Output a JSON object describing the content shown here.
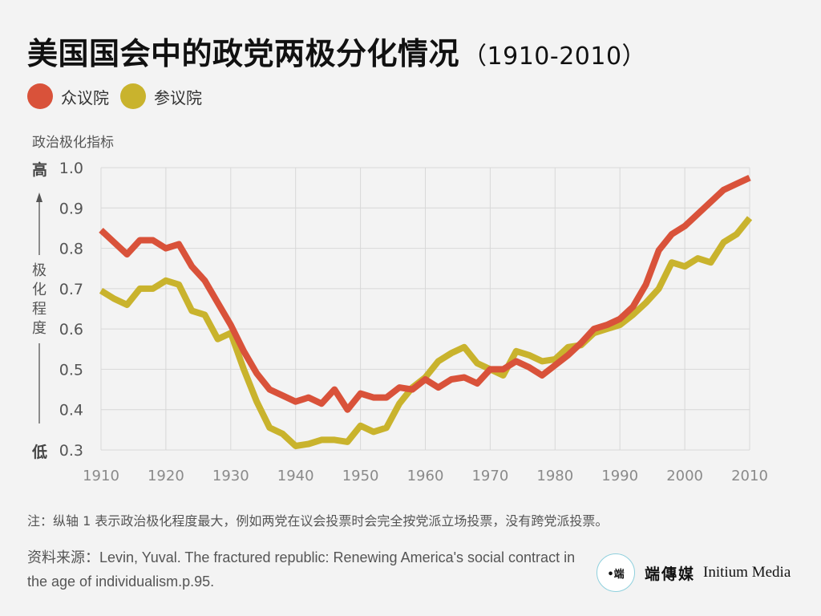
{
  "header": {
    "title": "美国国会中的政党两极分化情况",
    "subtitle": "（1910-2010）"
  },
  "legend": [
    {
      "label": "众议院",
      "color": "#d9523a"
    },
    {
      "label": "参议院",
      "color": "#c9b32d"
    }
  ],
  "axis": {
    "ylabel": "政治极化指标",
    "high_label": "高",
    "low_label": "低",
    "vertical_label": "极化程度"
  },
  "chart_data": {
    "type": "line",
    "title": "美国国会中的政党两极分化情况（1910-2010）",
    "ylabel": "政治极化指标",
    "xlabel": "",
    "xlim": [
      1910,
      2010
    ],
    "ylim": [
      0.3,
      1.0
    ],
    "x_ticks": [
      "1910",
      "1920",
      "1930",
      "1940",
      "1950",
      "1960",
      "1970",
      "1980",
      "1990",
      "2000",
      "2010"
    ],
    "y_ticks": [
      "0.3",
      "0.4",
      "0.5",
      "0.6",
      "0.7",
      "0.8",
      "0.9",
      "1.0"
    ],
    "grid": true,
    "legend_position": "top-left",
    "series": [
      {
        "name": "众议院",
        "color": "#d9523a",
        "x": [
          1910,
          1912,
          1914,
          1916,
          1918,
          1920,
          1922,
          1924,
          1926,
          1928,
          1930,
          1932,
          1934,
          1936,
          1938,
          1940,
          1942,
          1944,
          1946,
          1948,
          1950,
          1952,
          1954,
          1956,
          1958,
          1960,
          1962,
          1964,
          1966,
          1968,
          1970,
          1972,
          1974,
          1976,
          1978,
          1980,
          1982,
          1984,
          1986,
          1988,
          1990,
          1992,
          1994,
          1996,
          1998,
          2000,
          2002,
          2004,
          2006,
          2008,
          2010
        ],
        "values": [
          0.845,
          0.815,
          0.785,
          0.82,
          0.82,
          0.8,
          0.81,
          0.755,
          0.72,
          0.665,
          0.61,
          0.545,
          0.49,
          0.45,
          0.435,
          0.42,
          0.43,
          0.415,
          0.45,
          0.4,
          0.44,
          0.43,
          0.43,
          0.455,
          0.45,
          0.475,
          0.455,
          0.475,
          0.48,
          0.465,
          0.5,
          0.5,
          0.52,
          0.505,
          0.485,
          0.51,
          0.535,
          0.565,
          0.6,
          0.61,
          0.625,
          0.655,
          0.71,
          0.795,
          0.835,
          0.855,
          0.885,
          0.915,
          0.945,
          0.96,
          0.975
        ]
      },
      {
        "name": "参议院",
        "color": "#c9b32d",
        "x": [
          1910,
          1912,
          1914,
          1916,
          1918,
          1920,
          1922,
          1924,
          1926,
          1928,
          1930,
          1932,
          1934,
          1936,
          1938,
          1940,
          1942,
          1944,
          1946,
          1948,
          1950,
          1952,
          1954,
          1956,
          1958,
          1960,
          1962,
          1964,
          1966,
          1968,
          1970,
          1972,
          1974,
          1976,
          1978,
          1980,
          1982,
          1984,
          1986,
          1988,
          1990,
          1992,
          1994,
          1996,
          1998,
          2000,
          2002,
          2004,
          2006,
          2008,
          2010
        ],
        "values": [
          0.695,
          0.675,
          0.66,
          0.7,
          0.7,
          0.72,
          0.71,
          0.645,
          0.635,
          0.575,
          0.59,
          0.5,
          0.42,
          0.355,
          0.34,
          0.31,
          0.315,
          0.325,
          0.325,
          0.32,
          0.36,
          0.345,
          0.355,
          0.415,
          0.455,
          0.48,
          0.52,
          0.54,
          0.555,
          0.515,
          0.5,
          0.485,
          0.545,
          0.535,
          0.52,
          0.525,
          0.555,
          0.56,
          0.59,
          0.6,
          0.61,
          0.635,
          0.665,
          0.7,
          0.765,
          0.755,
          0.775,
          0.765,
          0.815,
          0.835,
          0.875
        ]
      }
    ]
  },
  "footnote": "注：纵轴 1 表示政治极化程度最大，例如两党在议会投票时会完全按党派立场投票，没有跨党派投票。",
  "source": "资料来源：Levin, Yuval. The fractured republic: Renewing America's social contract in the age of individualism.p.95.",
  "brand": {
    "logo_icon": "initium-logo-icon",
    "name_cn": "端傳媒",
    "name_en": "Initium Media"
  }
}
